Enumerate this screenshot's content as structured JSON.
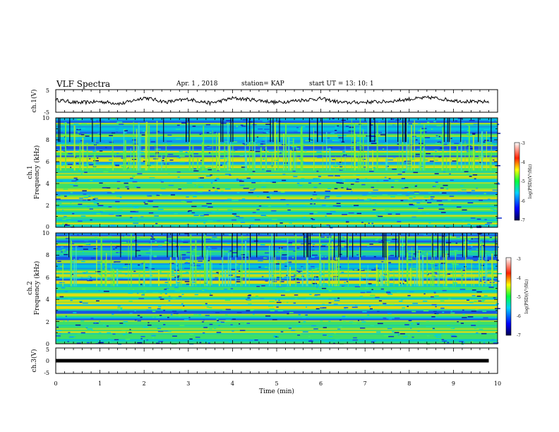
{
  "header": {
    "title": "VLF Spectra",
    "date": "Apr. 1 , 2018",
    "station": "station= KAP",
    "start": "start UT =  13: 10: 1"
  },
  "chart_data": [
    {
      "type": "line",
      "panel": "ch1-waveform",
      "ylabel": "ch.1(V)",
      "ylim": [
        -5,
        5
      ],
      "yticks": [
        "5",
        "-5"
      ],
      "xlim": [
        0,
        10
      ],
      "x": [
        0,
        0.5,
        1,
        1.5,
        2,
        2.5,
        3,
        3.5,
        4,
        4.5,
        5,
        5.5,
        6,
        6.5,
        7,
        7.5,
        8,
        8.5,
        9,
        9.5,
        9.8
      ],
      "y": [
        0.5,
        -0.8,
        -0.3,
        -1.2,
        1.5,
        -0.5,
        0.8,
        -1.0,
        1.2,
        0.5,
        -0.7,
        0.3,
        1.0,
        -0.8,
        -0.5,
        -0.3,
        0.8,
        1.5,
        0.2,
        -0.5,
        -0.3
      ]
    },
    {
      "type": "heatmap",
      "panel": "ch1-spectrogram",
      "ylabel": "ch.1",
      "ylabel2": "Frequency (kHz)",
      "ylim": [
        0,
        10
      ],
      "yticks": [
        "0",
        "2",
        "4",
        "6",
        "8",
        "10"
      ],
      "xlim": [
        0,
        10
      ],
      "colorbar_label": "log(PSD)(V²/Hz)",
      "colorbar_range": [
        -7,
        -3
      ],
      "colorbar_ticks": [
        "-3",
        "-4",
        "-5",
        "-6",
        "-7"
      ],
      "bands_khz": [
        0.4,
        1.0,
        1.6,
        2.2,
        2.8,
        3.4,
        4.0,
        4.6,
        5.1,
        5.6,
        6.2,
        6.8,
        7.6,
        8.4,
        9.4
      ]
    },
    {
      "type": "heatmap",
      "panel": "ch2-spectrogram",
      "ylabel": "ch.2",
      "ylabel2": "Frequency (kHz)",
      "ylim": [
        0,
        10
      ],
      "yticks": [
        "0",
        "2",
        "4",
        "6",
        "8",
        "10"
      ],
      "xlim": [
        0,
        10
      ],
      "colorbar_label": "log(PSD)(V²/Hz)",
      "colorbar_range": [
        -7,
        -3
      ],
      "colorbar_ticks": [
        "-3",
        "-4",
        "-5",
        "-6",
        "-7"
      ],
      "bands_khz": [
        0.6,
        1.2,
        2.0,
        2.6,
        3.2,
        3.8,
        4.4,
        5.0,
        5.6,
        6.2,
        6.6,
        7.4,
        8.2,
        9.0,
        9.6
      ]
    },
    {
      "type": "line",
      "panel": "ch3-waveform",
      "ylabel": "ch.3(V)",
      "ylim": [
        -5,
        5
      ],
      "yticks": [
        "5",
        "0",
        "-5"
      ],
      "xlim": [
        0,
        10
      ],
      "xlabel": "Time (min)",
      "xticks": [
        "0",
        "1",
        "2",
        "3",
        "4",
        "5",
        "6",
        "7",
        "8",
        "9",
        "10"
      ],
      "x": [
        0,
        9.8
      ],
      "y": [
        0,
        0
      ]
    }
  ]
}
